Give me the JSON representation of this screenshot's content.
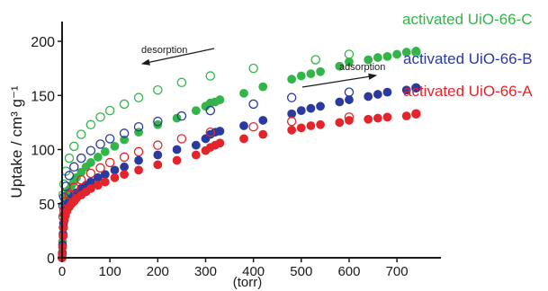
{
  "chart_data": {
    "type": "scatter",
    "title": "",
    "xlabel": "(torr)",
    "ylabel": "Uptake / cm³ g⁻¹",
    "xlim": [
      0,
      760
    ],
    "ylim": [
      0,
      200
    ],
    "xticks": [
      0,
      100,
      200,
      300,
      400,
      500,
      600,
      700
    ],
    "yticks": [
      0,
      50,
      100,
      150,
      200
    ],
    "grid": false,
    "annotations": [
      {
        "text": "desorption",
        "arrow": "left"
      },
      {
        "text": "adsorption",
        "arrow": "right"
      }
    ],
    "series": [
      {
        "name": "activated UiO-66-C",
        "color": "#33b54a",
        "adsorption": [
          [
            0,
            0
          ],
          [
            0.5,
            5
          ],
          [
            1,
            15
          ],
          [
            2,
            28
          ],
          [
            3,
            40
          ],
          [
            5,
            48
          ],
          [
            7,
            53
          ],
          [
            10,
            58
          ],
          [
            15,
            63
          ],
          [
            20,
            67
          ],
          [
            25,
            71
          ],
          [
            30,
            74
          ],
          [
            40,
            79
          ],
          [
            50,
            84
          ],
          [
            60,
            88
          ],
          [
            75,
            93
          ],
          [
            90,
            98
          ],
          [
            110,
            103
          ],
          [
            130,
            109
          ],
          [
            160,
            116
          ],
          [
            200,
            123
          ],
          [
            240,
            129
          ],
          [
            280,
            136
          ],
          [
            300,
            140
          ],
          [
            310,
            143
          ],
          [
            320,
            144
          ],
          [
            330,
            146
          ],
          [
            380,
            152
          ],
          [
            420,
            158
          ],
          [
            480,
            165
          ],
          [
            500,
            168
          ],
          [
            520,
            170
          ],
          [
            540,
            172
          ],
          [
            580,
            177
          ],
          [
            600,
            181
          ],
          [
            640,
            183
          ],
          [
            660,
            185
          ],
          [
            680,
            186
          ],
          [
            700,
            188
          ],
          [
            720,
            190
          ],
          [
            740,
            191
          ]
        ],
        "desorption": [
          [
            740,
            190
          ],
          [
            600,
            188
          ],
          [
            530,
            183
          ],
          [
            400,
            175
          ],
          [
            310,
            168
          ],
          [
            250,
            162
          ],
          [
            200,
            155
          ],
          [
            160,
            148
          ],
          [
            130,
            142
          ],
          [
            100,
            136
          ],
          [
            80,
            130
          ],
          [
            60,
            123
          ],
          [
            40,
            114
          ],
          [
            25,
            103
          ],
          [
            15,
            92
          ],
          [
            8,
            80
          ],
          [
            4,
            68
          ],
          [
            2,
            58
          ]
        ]
      },
      {
        "name": "activated UiO-66-B",
        "color": "#2b3a9e",
        "adsorption": [
          [
            0,
            0
          ],
          [
            0.5,
            4
          ],
          [
            1,
            12
          ],
          [
            2,
            22
          ],
          [
            3,
            32
          ],
          [
            5,
            40
          ],
          [
            7,
            44
          ],
          [
            10,
            48
          ],
          [
            15,
            52
          ],
          [
            20,
            55
          ],
          [
            25,
            58
          ],
          [
            30,
            60
          ],
          [
            40,
            64
          ],
          [
            50,
            67
          ],
          [
            60,
            70
          ],
          [
            75,
            74
          ],
          [
            90,
            77
          ],
          [
            110,
            81
          ],
          [
            130,
            84
          ],
          [
            160,
            90
          ],
          [
            200,
            95
          ],
          [
            240,
            100
          ],
          [
            280,
            104
          ],
          [
            300,
            110
          ],
          [
            310,
            114
          ],
          [
            320,
            116
          ],
          [
            330,
            117
          ],
          [
            380,
            122
          ],
          [
            420,
            127
          ],
          [
            480,
            133
          ],
          [
            500,
            136
          ],
          [
            520,
            138
          ],
          [
            540,
            140
          ],
          [
            580,
            144
          ],
          [
            600,
            146
          ],
          [
            640,
            149
          ],
          [
            660,
            151
          ],
          [
            680,
            153
          ],
          [
            720,
            155
          ],
          [
            740,
            157
          ]
        ],
        "desorption": [
          [
            740,
            157
          ],
          [
            600,
            153
          ],
          [
            480,
            148
          ],
          [
            400,
            142
          ],
          [
            310,
            136
          ],
          [
            250,
            131
          ],
          [
            200,
            126
          ],
          [
            160,
            121
          ],
          [
            130,
            115
          ],
          [
            100,
            110
          ],
          [
            80,
            105
          ],
          [
            60,
            99
          ],
          [
            40,
            92
          ],
          [
            25,
            84
          ],
          [
            15,
            76
          ],
          [
            8,
            66
          ],
          [
            4,
            56
          ],
          [
            2,
            48
          ]
        ]
      },
      {
        "name": "activated UiO-66-A",
        "color": "#e3252b",
        "adsorption": [
          [
            0,
            0
          ],
          [
            0.5,
            3
          ],
          [
            1,
            10
          ],
          [
            2,
            20
          ],
          [
            3,
            28
          ],
          [
            5,
            35
          ],
          [
            7,
            39
          ],
          [
            10,
            43
          ],
          [
            15,
            47
          ],
          [
            20,
            50
          ],
          [
            25,
            52
          ],
          [
            30,
            55
          ],
          [
            40,
            58
          ],
          [
            50,
            61
          ],
          [
            60,
            64
          ],
          [
            75,
            67
          ],
          [
            90,
            70
          ],
          [
            110,
            74
          ],
          [
            130,
            77
          ],
          [
            160,
            81
          ],
          [
            200,
            86
          ],
          [
            240,
            90
          ],
          [
            280,
            95
          ],
          [
            300,
            99
          ],
          [
            310,
            102
          ],
          [
            320,
            104
          ],
          [
            330,
            106
          ],
          [
            380,
            110
          ],
          [
            420,
            114
          ],
          [
            480,
            118
          ],
          [
            500,
            120
          ],
          [
            520,
            122
          ],
          [
            540,
            123
          ],
          [
            580,
            125
          ],
          [
            600,
            127
          ],
          [
            640,
            128
          ],
          [
            660,
            129
          ],
          [
            680,
            130
          ],
          [
            720,
            131
          ],
          [
            740,
            133
          ]
        ],
        "desorption": [
          [
            740,
            133
          ],
          [
            600,
            130
          ],
          [
            480,
            126
          ],
          [
            400,
            121
          ],
          [
            310,
            116
          ],
          [
            250,
            110
          ],
          [
            200,
            104
          ],
          [
            160,
            98
          ],
          [
            130,
            93
          ],
          [
            100,
            88
          ],
          [
            80,
            83
          ],
          [
            60,
            78
          ],
          [
            40,
            72
          ],
          [
            25,
            65
          ],
          [
            15,
            58
          ],
          [
            8,
            52
          ],
          [
            4,
            44
          ],
          [
            2,
            38
          ]
        ]
      }
    ]
  }
}
